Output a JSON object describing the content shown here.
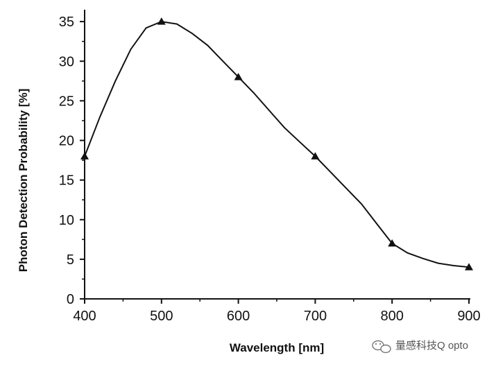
{
  "chart_data": {
    "type": "line",
    "title": "",
    "xlabel": "Wavelength [nm]",
    "ylabel": "Photon Detection Probability [%]",
    "xlim": [
      400,
      900
    ],
    "ylim": [
      0,
      36.5
    ],
    "xticks": [
      400,
      500,
      600,
      700,
      800,
      900
    ],
    "yticks": [
      0,
      5,
      10,
      15,
      20,
      25,
      30,
      35
    ],
    "curve": {
      "x": [
        400,
        420,
        440,
        460,
        480,
        500,
        520,
        540,
        560,
        580,
        600,
        620,
        640,
        660,
        680,
        700,
        720,
        740,
        760,
        780,
        800,
        820,
        840,
        860,
        880,
        900
      ],
      "y": [
        18,
        23,
        27.5,
        31.5,
        34.2,
        35,
        34.7,
        33.5,
        32,
        30,
        28,
        26,
        23.8,
        21.6,
        19.8,
        18,
        16,
        14,
        12,
        9.5,
        7,
        5.8,
        5.1,
        4.5,
        4.2,
        4
      ]
    },
    "markers": {
      "x": [
        400,
        500,
        600,
        700,
        800,
        900
      ],
      "y": [
        18,
        35,
        28,
        18,
        7,
        4
      ]
    }
  },
  "watermark": {
    "text": "量感科技Q opto",
    "icon": "wechat-icon"
  }
}
